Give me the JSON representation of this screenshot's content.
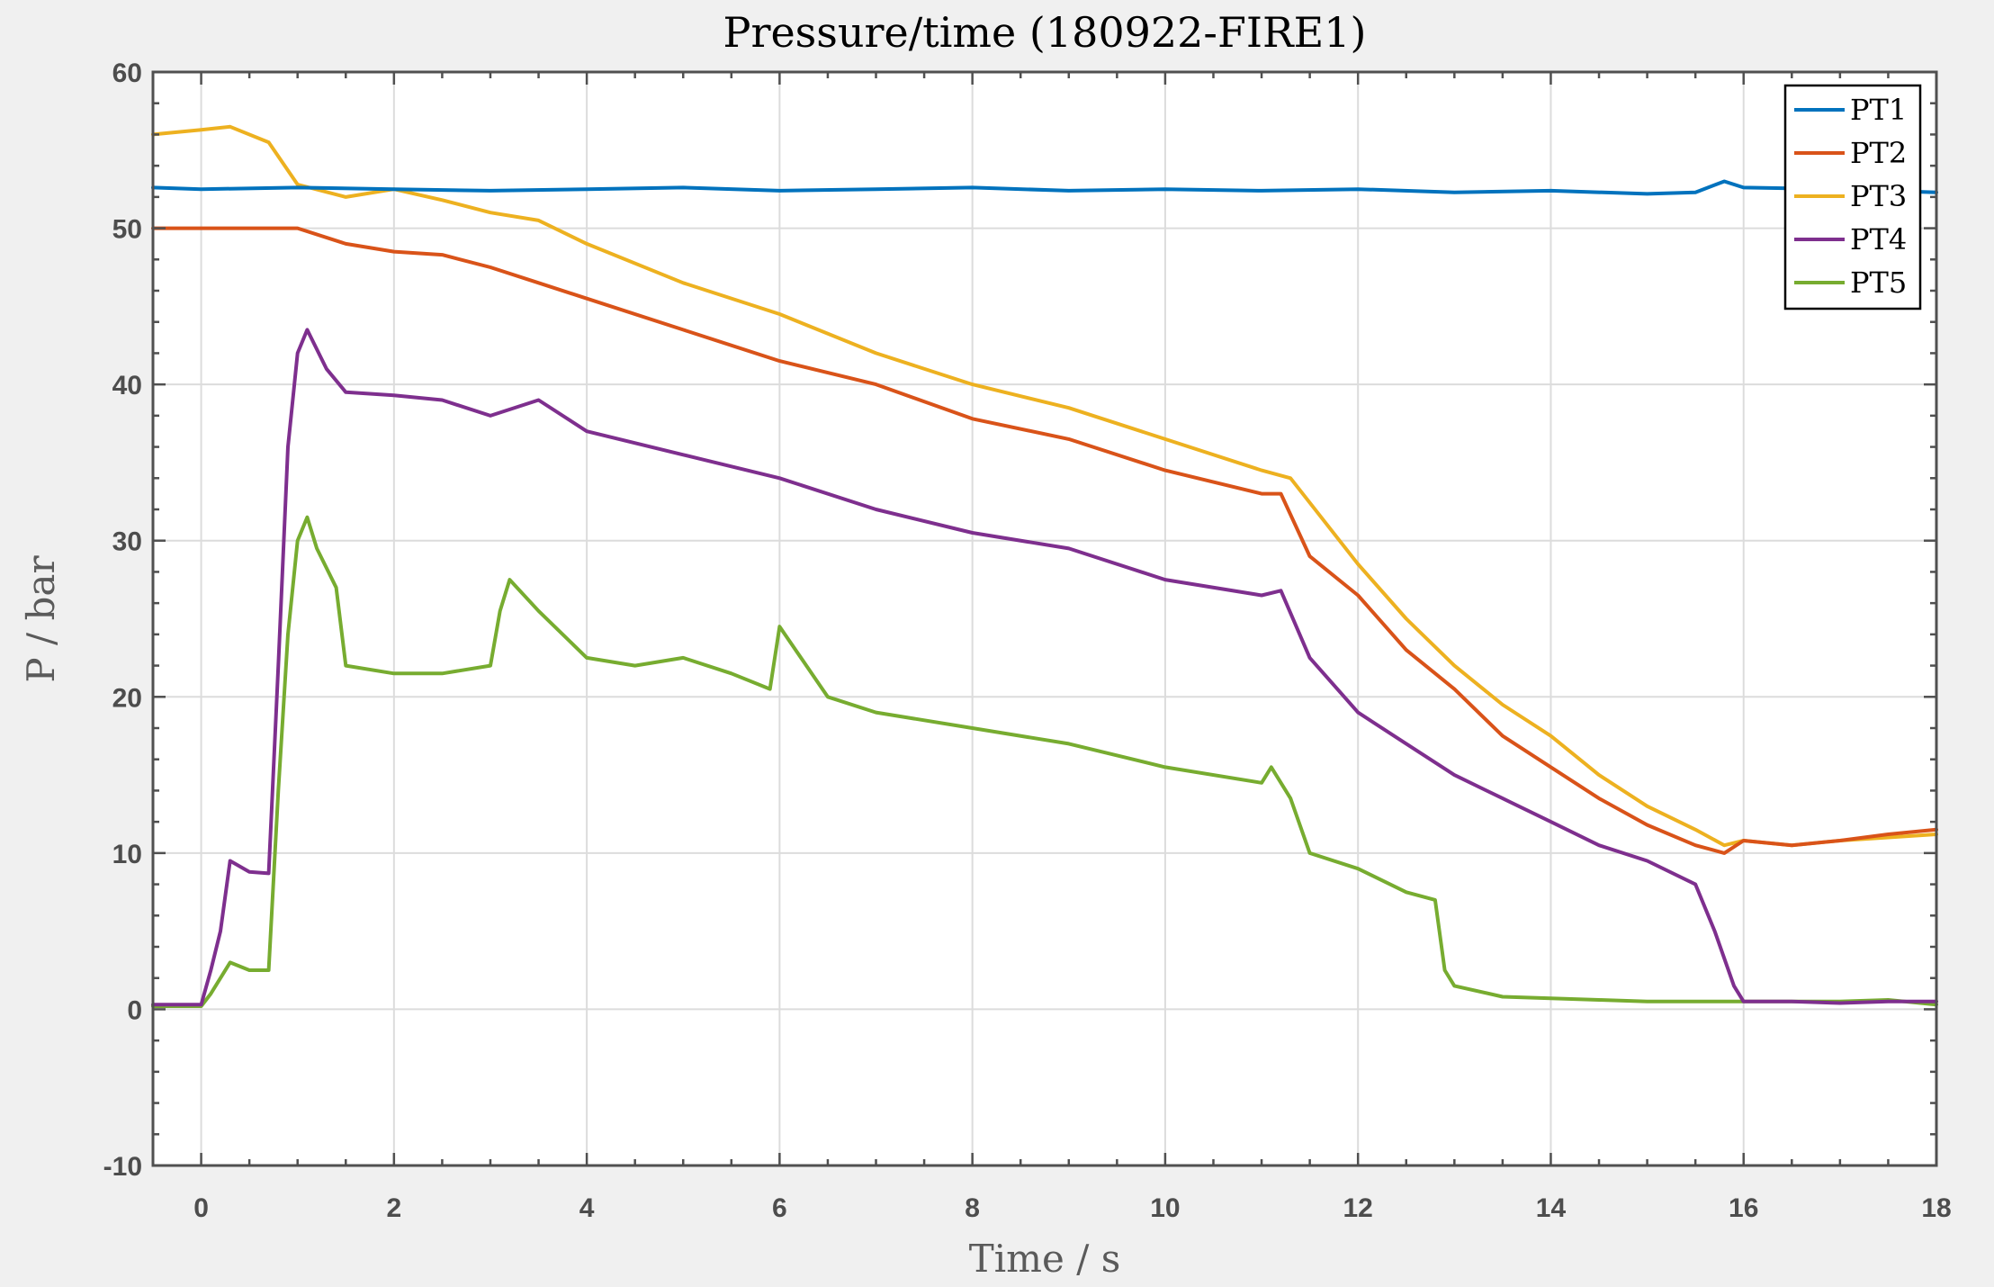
{
  "chart_data": {
    "type": "line",
    "title": "Pressure/time (180922-FIRE1)",
    "xlabel": "Time / s",
    "ylabel": "P / bar",
    "xlim": [
      -0.5,
      18
    ],
    "ylim": [
      -10,
      60
    ],
    "x_ticks": [
      0,
      2,
      4,
      6,
      8,
      10,
      12,
      14,
      16,
      18
    ],
    "y_ticks": [
      -10,
      0,
      10,
      20,
      30,
      40,
      50,
      60
    ],
    "x_tick_labels": [
      "0",
      "2",
      "4",
      "6",
      "8",
      "10",
      "12",
      "14",
      "16",
      "18"
    ],
    "y_tick_labels": [
      "-10",
      "0",
      "10",
      "20",
      "30",
      "40",
      "50",
      "60"
    ],
    "grid": true,
    "legend_position": "top-right",
    "series": [
      {
        "name": "PT1",
        "color": "#0072BD",
        "x": [
          -0.5,
          0,
          1,
          2,
          3,
          4,
          5,
          6,
          7,
          8,
          9,
          10,
          11,
          12,
          13,
          14,
          15,
          15.5,
          15.8,
          16,
          17,
          18
        ],
        "y": [
          52.6,
          52.5,
          52.6,
          52.5,
          52.4,
          52.5,
          52.6,
          52.4,
          52.5,
          52.6,
          52.4,
          52.5,
          52.4,
          52.5,
          52.3,
          52.4,
          52.2,
          52.3,
          53.0,
          52.6,
          52.5,
          52.3
        ]
      },
      {
        "name": "PT2",
        "color": "#D95319",
        "x": [
          -0.5,
          0,
          1,
          1.5,
          2,
          2.5,
          3,
          3.5,
          4,
          5,
          6,
          7,
          8,
          9,
          10,
          11,
          11.2,
          11.5,
          12,
          12.5,
          13,
          13.5,
          14,
          14.5,
          15,
          15.5,
          15.8,
          16,
          16.5,
          17,
          17.5,
          18
        ],
        "y": [
          50.0,
          50.0,
          50.0,
          49.0,
          48.5,
          48.3,
          47.5,
          46.5,
          45.5,
          43.5,
          41.5,
          40.0,
          37.8,
          36.5,
          34.5,
          33.0,
          33.0,
          29.0,
          26.5,
          23.0,
          20.5,
          17.5,
          15.5,
          13.5,
          11.8,
          10.5,
          10.0,
          10.8,
          10.5,
          10.8,
          11.2,
          11.5
        ]
      },
      {
        "name": "PT3",
        "color": "#EDB120",
        "x": [
          -0.5,
          0,
          0.3,
          0.7,
          1,
          1.5,
          2,
          2.5,
          3,
          3.5,
          4,
          5,
          6,
          7,
          8,
          9,
          10,
          11,
          11.3,
          12,
          12.5,
          13,
          13.5,
          14,
          14.5,
          15,
          15.5,
          15.8,
          16,
          16.5,
          17,
          18
        ],
        "y": [
          56.0,
          56.3,
          56.5,
          55.5,
          52.8,
          52.0,
          52.5,
          51.8,
          51.0,
          50.5,
          49.0,
          46.5,
          44.5,
          42.0,
          40.0,
          38.5,
          36.5,
          34.5,
          34.0,
          28.5,
          25.0,
          22.0,
          19.5,
          17.5,
          15.0,
          13.0,
          11.5,
          10.5,
          10.8,
          10.5,
          10.8,
          11.2
        ]
      },
      {
        "name": "PT4",
        "color": "#7E2F8E",
        "x": [
          -0.5,
          0,
          0.1,
          0.2,
          0.3,
          0.5,
          0.7,
          0.8,
          0.9,
          1.0,
          1.1,
          1.3,
          1.5,
          2,
          2.5,
          3,
          3.5,
          4,
          5,
          6,
          7,
          8,
          9,
          10,
          11,
          11.2,
          11.5,
          12,
          12.5,
          13,
          13.5,
          14,
          14.5,
          15,
          15.5,
          15.7,
          15.9,
          16,
          16.5,
          17,
          17.5,
          18
        ],
        "y": [
          0.3,
          0.3,
          2.5,
          5.0,
          9.5,
          8.8,
          8.7,
          22.0,
          36.0,
          42.0,
          43.5,
          41.0,
          39.5,
          39.3,
          39.0,
          38.0,
          39.0,
          37.0,
          35.5,
          34.0,
          32.0,
          30.5,
          29.5,
          27.5,
          26.5,
          26.8,
          22.5,
          19.0,
          17.0,
          15.0,
          13.5,
          12.0,
          10.5,
          9.5,
          8.0,
          5.0,
          1.5,
          0.5,
          0.5,
          0.4,
          0.5,
          0.5
        ]
      },
      {
        "name": "PT5",
        "color": "#77AC30",
        "x": [
          -0.5,
          0,
          0.1,
          0.3,
          0.5,
          0.7,
          0.8,
          0.9,
          1.0,
          1.1,
          1.2,
          1.4,
          1.5,
          2,
          2.5,
          3,
          3.1,
          3.2,
          3.5,
          4,
          4.5,
          5,
          5.5,
          5.9,
          6.0,
          6.5,
          7,
          8,
          9,
          10,
          11,
          11.1,
          11.3,
          11.5,
          12,
          12.5,
          12.8,
          12.9,
          13.0,
          13.5,
          14,
          14.5,
          15,
          15.5,
          16,
          16.5,
          17,
          17.5,
          18
        ],
        "y": [
          0.2,
          0.2,
          1.0,
          3.0,
          2.5,
          2.5,
          14.0,
          24.0,
          30.0,
          31.5,
          29.5,
          27.0,
          22.0,
          21.5,
          21.5,
          22.0,
          25.5,
          27.5,
          25.5,
          22.5,
          22.0,
          22.5,
          21.5,
          20.5,
          24.5,
          20.0,
          19.0,
          18.0,
          17.0,
          15.5,
          14.5,
          15.5,
          13.5,
          10.0,
          9.0,
          7.5,
          7.0,
          2.5,
          1.5,
          0.8,
          0.7,
          0.6,
          0.5,
          0.5,
          0.5,
          0.5,
          0.5,
          0.6,
          0.3
        ]
      }
    ]
  }
}
